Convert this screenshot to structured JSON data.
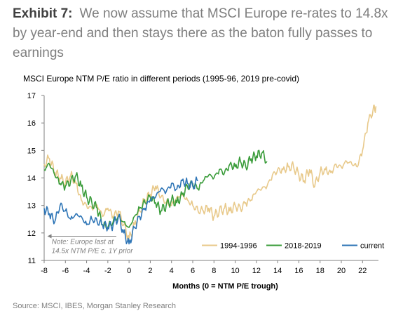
{
  "header": {
    "exhibit_label": "Exhibit 7:",
    "exhibit_text": "We now assume that MSCI Europe re-rates to 14.8x by year-end and then stays there as the baton fully passes to earnings"
  },
  "chart_data": {
    "type": "line",
    "title": "MSCI Europe NTM P/E ratio in different periods (1995-96, 2019 pre-covid)",
    "xlabel": "Months (0 = NTM P/E trough)",
    "ylabel": "",
    "xlim": [
      -8,
      23.5
    ],
    "ylim": [
      11,
      17
    ],
    "xticks": [
      -8,
      -6,
      -4,
      -2,
      0,
      2,
      4,
      6,
      8,
      10,
      12,
      14,
      16,
      18,
      20,
      22
    ],
    "yticks": [
      11,
      12,
      13,
      14,
      15,
      16,
      17
    ],
    "grid": false,
    "legend_position": "bottom-right",
    "annotation": "Note: Europe last at\n14.5x NTM P/E c. 1Y prior",
    "series": [
      {
        "name": "1994-1996",
        "color": "#e8c98a",
        "x": [
          -8,
          -7.5,
          -7,
          -6.5,
          -6,
          -5.5,
          -5,
          -4.5,
          -4,
          -3.5,
          -3,
          -2.5,
          -2,
          -1.5,
          -1,
          -0.5,
          0,
          0.5,
          1,
          1.5,
          2,
          2.5,
          3,
          3.5,
          4,
          4.5,
          5,
          5.5,
          6,
          6.5,
          7,
          7.5,
          8,
          8.5,
          9,
          9.5,
          10,
          10.5,
          11,
          11.5,
          12,
          12.5,
          13,
          13.5,
          14,
          14.5,
          15,
          15.5,
          16,
          16.5,
          17,
          17.5,
          18,
          18.5,
          19,
          19.5,
          20,
          20.5,
          21,
          21.5,
          22,
          22.5,
          23,
          23.3
        ],
        "values": [
          14.5,
          14.7,
          14.2,
          14.0,
          13.8,
          14.1,
          13.8,
          13.2,
          13.0,
          12.9,
          13.0,
          12.6,
          12.9,
          12.6,
          12.8,
          12.3,
          11.8,
          12.3,
          12.8,
          13.2,
          13.4,
          13.7,
          13.3,
          13.1,
          13.0,
          13.3,
          13.4,
          13.2,
          13.0,
          12.8,
          12.8,
          12.9,
          12.6,
          12.8,
          12.9,
          12.8,
          13.0,
          12.9,
          13.1,
          13.2,
          13.5,
          13.6,
          13.7,
          14.1,
          14.3,
          14.3,
          14.4,
          14.4,
          14.1,
          13.9,
          14.3,
          13.7,
          14.2,
          14.3,
          14.2,
          14.5,
          14.4,
          14.6,
          14.5,
          14.4,
          15.0,
          16.0,
          16.5,
          16.6
        ]
      },
      {
        "name": "2018-2019",
        "color": "#3a9c3a",
        "x": [
          -8,
          -7.5,
          -7,
          -6.5,
          -6,
          -5.5,
          -5,
          -4.5,
          -4,
          -3.5,
          -3,
          -2.5,
          -2,
          -1.5,
          -1,
          -0.5,
          0,
          0.5,
          1,
          1.5,
          2,
          2.5,
          3,
          3.5,
          4,
          4.5,
          5,
          5.5,
          6,
          6.5,
          7,
          7.5,
          8,
          8.5,
          9,
          9.5,
          10,
          10.5,
          11,
          11.5,
          12,
          12.5,
          13
        ],
        "values": [
          14.3,
          14.5,
          14.1,
          13.8,
          13.7,
          13.9,
          14.1,
          13.7,
          13.3,
          13.1,
          12.9,
          12.3,
          12.2,
          12.4,
          12.6,
          12.4,
          12.2,
          12.6,
          12.9,
          13.1,
          13.3,
          13.1,
          12.8,
          13.0,
          13.2,
          13.1,
          13.4,
          13.7,
          13.8,
          13.6,
          13.9,
          14.1,
          14.0,
          14.3,
          14.2,
          14.5,
          14.4,
          14.6,
          14.4,
          14.7,
          14.8,
          14.9,
          14.6
        ]
      },
      {
        "name": "current",
        "color": "#2e75b6",
        "x": [
          -8,
          -7.5,
          -7,
          -6.5,
          -6,
          -5.5,
          -5,
          -4.5,
          -4,
          -3.5,
          -3,
          -2.5,
          -2,
          -1.5,
          -1,
          -0.5,
          0,
          0.5,
          1,
          1.5,
          2,
          2.5,
          3,
          3.5,
          4,
          4.5,
          5,
          5.5,
          6,
          6.5
        ],
        "values": [
          12.9,
          12.7,
          12.4,
          13.0,
          12.8,
          12.5,
          12.7,
          12.6,
          12.3,
          12.5,
          12.4,
          12.3,
          12.2,
          12.3,
          12.6,
          12.0,
          11.6,
          12.2,
          12.6,
          12.9,
          13.2,
          13.3,
          13.6,
          13.5,
          13.8,
          13.6,
          13.9,
          13.8,
          13.7,
          13.9
        ]
      }
    ]
  },
  "source": "Source: MSCI, IBES, Morgan Stanley Research"
}
